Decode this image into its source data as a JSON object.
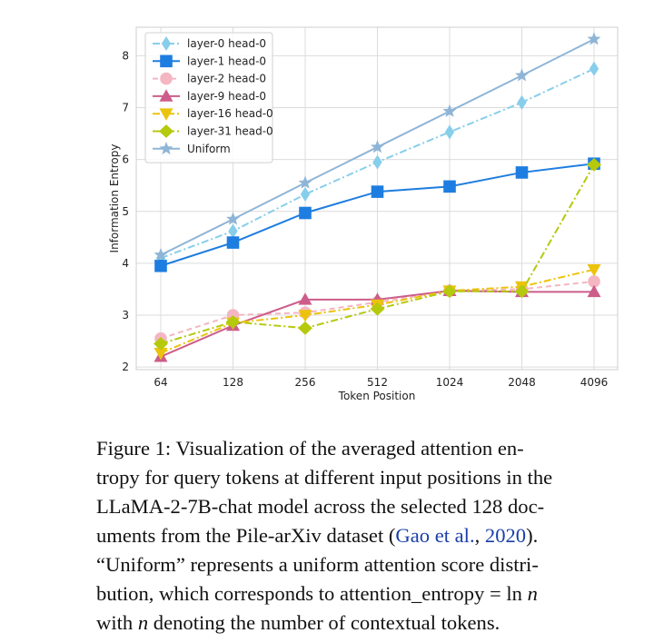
{
  "chart_data": {
    "type": "line",
    "xlabel": "Token Position",
    "ylabel": "Information Entropy",
    "categories": [
      "64",
      "128",
      "256",
      "512",
      "1024",
      "2048",
      "4096"
    ],
    "ylim": [
      1.95,
      8.55
    ],
    "yticks": [
      2,
      3,
      4,
      5,
      6,
      7,
      8
    ],
    "grid": true,
    "legend_position": "top-left",
    "series": [
      {
        "name": "layer-0 head-0",
        "values": [
          4.1,
          4.62,
          5.33,
          5.95,
          6.53,
          7.1,
          7.75
        ],
        "color": "#87ceeb",
        "marker": "diamond",
        "dash": "dashdot"
      },
      {
        "name": "layer-1 head-0",
        "values": [
          3.95,
          4.4,
          4.97,
          5.38,
          5.48,
          5.75,
          5.92
        ],
        "color": "#1e7de0",
        "marker": "square",
        "dash": "solid"
      },
      {
        "name": "layer-2 head-0",
        "values": [
          2.55,
          3.0,
          3.05,
          3.25,
          3.47,
          3.5,
          3.65
        ],
        "color": "#f4b6c2",
        "marker": "circle",
        "dash": "dashed"
      },
      {
        "name": "layer-9 head-0",
        "values": [
          2.2,
          2.8,
          3.3,
          3.3,
          3.47,
          3.45,
          3.45
        ],
        "color": "#cc5d8a",
        "marker": "triangle-up",
        "dash": "solid"
      },
      {
        "name": "layer-16 head-0",
        "values": [
          2.27,
          2.85,
          3.0,
          3.2,
          3.47,
          3.55,
          3.88
        ],
        "color": "#ecc30c",
        "marker": "triangle-down",
        "dash": "dashdot"
      },
      {
        "name": "layer-31 head-0",
        "values": [
          2.45,
          2.87,
          2.75,
          3.12,
          3.46,
          3.46,
          5.9
        ],
        "color": "#b5c90d",
        "marker": "diamond-large",
        "dash": "dashdot"
      },
      {
        "name": "Uniform",
        "values": [
          4.16,
          4.85,
          5.55,
          6.24,
          6.93,
          7.62,
          8.32
        ],
        "color": "#8fb5d6",
        "marker": "star",
        "dash": "solid"
      }
    ]
  },
  "caption": {
    "lines": [
      {
        "parts": [
          {
            "t": "Figure 1:  Visualization of the averaged attention en-"
          }
        ]
      },
      {
        "parts": [
          {
            "t": "tropy for query tokens at different input positions in the"
          }
        ]
      },
      {
        "parts": [
          {
            "t": "LLaMA-2-7B-chat model across the selected 128 doc-"
          }
        ]
      },
      {
        "parts": [
          {
            "t": "uments from the Pile-arXiv dataset ("
          },
          {
            "t": "Gao et al.",
            "c": "cite"
          },
          {
            "t": ", "
          },
          {
            "t": "2020",
            "c": "cite"
          },
          {
            "t": ")."
          }
        ]
      },
      {
        "parts": [
          {
            "t": "“Uniform” represents a uniform attention score distri-"
          }
        ]
      },
      {
        "parts": [
          {
            "t": "bution, which corresponds to attention_entropy = "
          },
          {
            "t": "ln",
            "c": "mathrm"
          },
          {
            "t": " "
          },
          {
            "t": "n",
            "c": "math"
          }
        ]
      },
      {
        "parts": [
          {
            "t": "with "
          },
          {
            "t": "n",
            "c": "math"
          },
          {
            "t": " denoting the number of contextual tokens."
          }
        ]
      }
    ]
  }
}
